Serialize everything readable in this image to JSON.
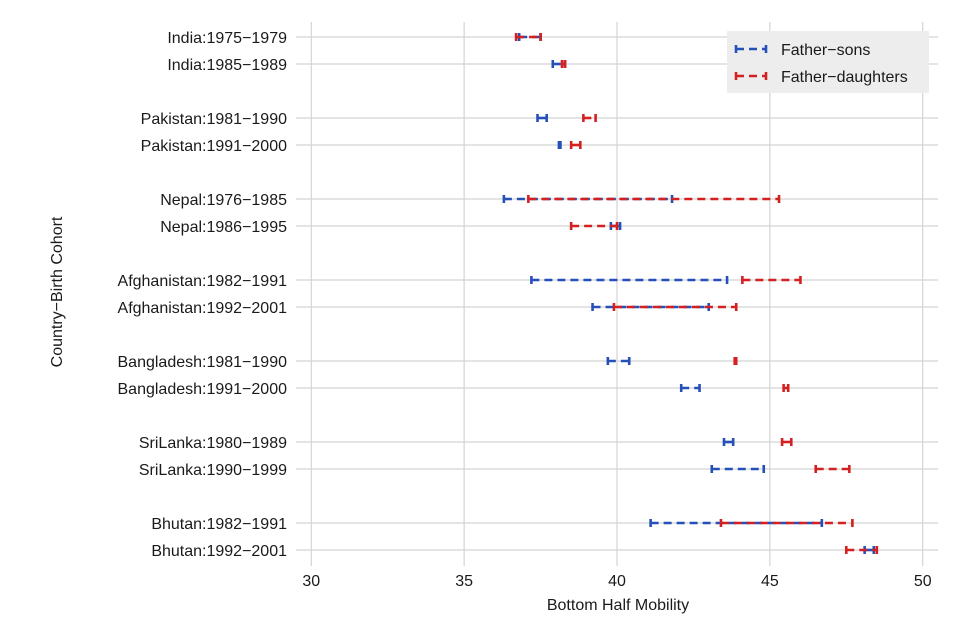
{
  "chart_data": {
    "type": "interval",
    "title": "",
    "xlabel": "Bottom Half Mobility",
    "ylabel": "Country−Birth Cohort",
    "xlim": [
      29.5,
      50.5
    ],
    "xticks": [
      30,
      35,
      40,
      45,
      50
    ],
    "grid": true,
    "legend_position": "top-right",
    "categories": [
      "India:1975−1979",
      "India:1985−1989",
      "Pakistan:1981−1990",
      "Pakistan:1991−2000",
      "Nepal:1976−1985",
      "Nepal:1986−1995",
      "Afghanistan:1982−1991",
      "Afghanistan:1992−2001",
      "Bangladesh:1981−1990",
      "Bangladesh:1991−2000",
      "SriLanka:1980−1989",
      "SriLanka:1990−1999",
      "Bhutan:1982−1991",
      "Bhutan:1992−2001"
    ],
    "series": [
      {
        "name": "Father−sons",
        "color": "#2450b8",
        "intervals": [
          [
            36.8,
            37.5
          ],
          [
            37.9,
            38.3
          ],
          [
            37.4,
            37.7
          ],
          [
            38.1,
            38.15
          ],
          [
            36.3,
            41.8
          ],
          [
            39.8,
            40.1
          ],
          [
            37.2,
            43.6
          ],
          [
            39.2,
            43.0
          ],
          [
            39.7,
            40.4
          ],
          [
            42.1,
            42.7
          ],
          [
            43.5,
            43.8
          ],
          [
            43.1,
            44.8
          ],
          [
            41.1,
            46.7
          ],
          [
            48.1,
            48.4
          ]
        ]
      },
      {
        "name": "Father−daughters",
        "color": "#d42020",
        "intervals": [
          [
            36.7,
            37.5
          ],
          [
            38.2,
            38.3
          ],
          [
            38.9,
            39.3
          ],
          [
            38.5,
            38.8
          ],
          [
            37.1,
            45.3
          ],
          [
            38.5,
            40.0
          ],
          [
            44.1,
            46.0
          ],
          [
            39.9,
            43.9
          ],
          [
            43.85,
            43.9
          ],
          [
            45.45,
            45.6
          ],
          [
            45.4,
            45.7
          ],
          [
            46.5,
            47.6
          ],
          [
            43.4,
            47.7
          ],
          [
            47.5,
            48.5
          ]
        ]
      }
    ]
  }
}
